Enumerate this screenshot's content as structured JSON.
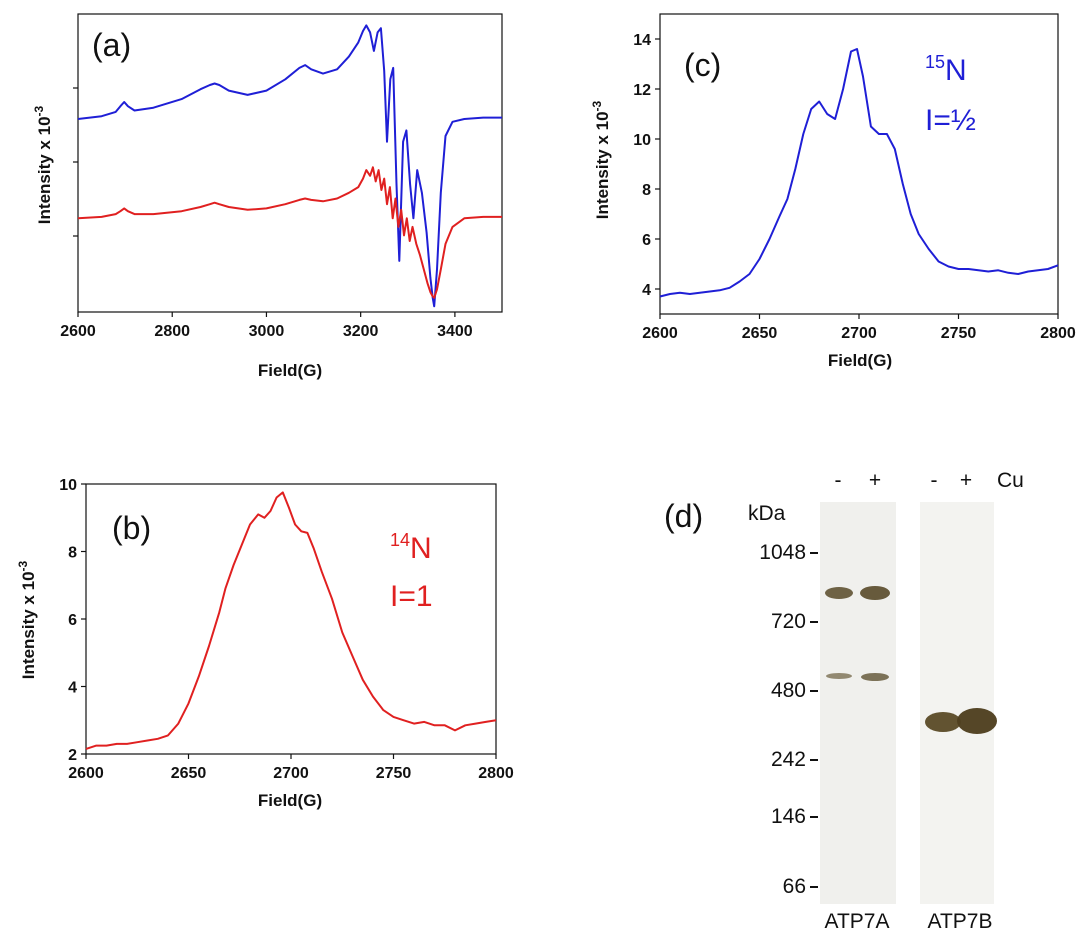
{
  "chart_data": [
    {
      "panel": "(a)",
      "type": "line",
      "xlabel": "Field(G)",
      "ylabel": "Intensity x 10",
      "ylabel_exp": "-3",
      "xlim": [
        2600,
        3500
      ],
      "xticks": [
        2600,
        2800,
        3000,
        3200,
        3400
      ],
      "series": [
        {
          "color": "#1f1fd6",
          "x": [
            2600,
            2650,
            2680,
            2690,
            2698,
            2706,
            2720,
            2760,
            2820,
            2860,
            2880,
            2890,
            2900,
            2920,
            2960,
            3000,
            3040,
            3070,
            3082,
            3095,
            3120,
            3150,
            3175,
            3195,
            3205,
            3212,
            3220,
            3228,
            3236,
            3243,
            3250,
            3256,
            3263,
            3269,
            3276,
            3282,
            3290,
            3297,
            3305,
            3312,
            3320,
            3330,
            3340,
            3348,
            3353,
            3356,
            3362,
            3370,
            3380,
            3395,
            3420,
            3460,
            3500
          ],
          "y": [
            0.68,
            0.69,
            0.705,
            0.725,
            0.74,
            0.725,
            0.71,
            0.72,
            0.75,
            0.785,
            0.8,
            0.805,
            0.8,
            0.78,
            0.765,
            0.78,
            0.82,
            0.86,
            0.87,
            0.855,
            0.84,
            0.855,
            0.9,
            0.95,
            0.99,
            1.01,
            0.985,
            0.92,
            0.985,
            1.0,
            0.85,
            0.6,
            0.82,
            0.86,
            0.45,
            0.18,
            0.6,
            0.64,
            0.45,
            0.33,
            0.5,
            0.42,
            0.28,
            0.12,
            0.05,
            0.02,
            0.15,
            0.42,
            0.62,
            0.67,
            0.68,
            0.685,
            0.685
          ]
        },
        {
          "color": "#e02020",
          "x": [
            2600,
            2650,
            2680,
            2690,
            2698,
            2706,
            2720,
            2760,
            2820,
            2860,
            2880,
            2890,
            2900,
            2920,
            2960,
            3000,
            3040,
            3070,
            3082,
            3095,
            3120,
            3150,
            3175,
            3195,
            3205,
            3212,
            3220,
            3226,
            3232,
            3238,
            3244,
            3250,
            3256,
            3262,
            3268,
            3274,
            3280,
            3286,
            3292,
            3298,
            3304,
            3310,
            3318,
            3326,
            3334,
            3342,
            3348,
            3353,
            3356,
            3362,
            3370,
            3380,
            3395,
            3420,
            3460,
            3500
          ],
          "y": [
            0.33,
            0.335,
            0.345,
            0.355,
            0.365,
            0.355,
            0.345,
            0.345,
            0.355,
            0.37,
            0.38,
            0.385,
            0.38,
            0.37,
            0.36,
            0.365,
            0.38,
            0.395,
            0.4,
            0.395,
            0.39,
            0.4,
            0.42,
            0.44,
            0.47,
            0.5,
            0.48,
            0.51,
            0.46,
            0.5,
            0.43,
            0.47,
            0.38,
            0.44,
            0.33,
            0.4,
            0.3,
            0.36,
            0.27,
            0.33,
            0.25,
            0.3,
            0.24,
            0.2,
            0.15,
            0.1,
            0.07,
            0.055,
            0.05,
            0.08,
            0.15,
            0.24,
            0.3,
            0.33,
            0.335,
            0.335
          ]
        }
      ]
    },
    {
      "panel": "(b)",
      "type": "line",
      "xlabel": "Field(G)",
      "ylabel": "Intensity x 10",
      "ylabel_exp": "-3",
      "xlim": [
        2600,
        2800
      ],
      "ylim": [
        2,
        10
      ],
      "xticks": [
        2600,
        2650,
        2700,
        2750,
        2800
      ],
      "yticks": [
        2,
        4,
        6,
        8,
        10
      ],
      "annotation": {
        "mass": "14",
        "symbol": "N",
        "spin": "I=1",
        "color": "#e02020"
      },
      "series": [
        {
          "color": "#e02020",
          "x": [
            2600,
            2605,
            2610,
            2615,
            2620,
            2625,
            2630,
            2635,
            2640,
            2645,
            2650,
            2655,
            2660,
            2665,
            2668,
            2672,
            2676,
            2680,
            2684,
            2687,
            2690,
            2693,
            2696,
            2699,
            2702,
            2705,
            2708,
            2711,
            2715,
            2720,
            2725,
            2730,
            2735,
            2740,
            2745,
            2750,
            2755,
            2760,
            2765,
            2770,
            2775,
            2780,
            2785,
            2790,
            2795,
            2800
          ],
          "y": [
            2.15,
            2.25,
            2.25,
            2.3,
            2.3,
            2.35,
            2.4,
            2.45,
            2.55,
            2.9,
            3.5,
            4.3,
            5.2,
            6.2,
            6.9,
            7.6,
            8.2,
            8.8,
            9.1,
            9.0,
            9.2,
            9.6,
            9.75,
            9.3,
            8.8,
            8.6,
            8.55,
            8.1,
            7.4,
            6.6,
            5.6,
            4.9,
            4.2,
            3.7,
            3.3,
            3.1,
            3.0,
            2.9,
            2.95,
            2.85,
            2.85,
            2.7,
            2.85,
            2.9,
            2.95,
            3.0
          ]
        }
      ]
    },
    {
      "panel": "(c)",
      "type": "line",
      "xlabel": "Field(G)",
      "ylabel": "Intensity x 10",
      "ylabel_exp": "-3",
      "xlim": [
        2600,
        2800
      ],
      "ylim": [
        3,
        15
      ],
      "xticks": [
        2600,
        2650,
        2700,
        2750,
        2800
      ],
      "yticks": [
        4,
        6,
        8,
        10,
        12,
        14
      ],
      "annotation": {
        "mass": "15",
        "symbol": "N",
        "spin": "I=½",
        "color": "#1f1fd6"
      },
      "series": [
        {
          "color": "#1f1fd6",
          "x": [
            2600,
            2605,
            2610,
            2615,
            2620,
            2625,
            2630,
            2635,
            2640,
            2645,
            2650,
            2655,
            2660,
            2664,
            2668,
            2672,
            2676,
            2680,
            2684,
            2688,
            2692,
            2696,
            2699,
            2702,
            2706,
            2710,
            2714,
            2718,
            2722,
            2726,
            2730,
            2735,
            2740,
            2745,
            2750,
            2755,
            2760,
            2765,
            2770,
            2775,
            2780,
            2785,
            2790,
            2795,
            2800
          ],
          "y": [
            3.7,
            3.8,
            3.85,
            3.8,
            3.85,
            3.9,
            3.95,
            4.05,
            4.3,
            4.6,
            5.2,
            6.0,
            6.9,
            7.6,
            8.8,
            10.2,
            11.2,
            11.5,
            11.0,
            10.8,
            12.0,
            13.5,
            13.6,
            12.5,
            10.5,
            10.2,
            10.2,
            9.6,
            8.2,
            7.0,
            6.2,
            5.6,
            5.1,
            4.9,
            4.8,
            4.8,
            4.75,
            4.7,
            4.75,
            4.65,
            4.6,
            4.7,
            4.75,
            4.8,
            4.95
          ]
        }
      ]
    }
  ],
  "blot": {
    "panel": "(d)",
    "unit": "kDa",
    "markers": [
      "1048",
      "720",
      "480",
      "242",
      "146",
      "66"
    ],
    "lane_signs": [
      "-",
      "+",
      "-",
      "+"
    ],
    "treatment": "Cu",
    "proteins": [
      "ATP7A",
      "ATP7B"
    ]
  }
}
